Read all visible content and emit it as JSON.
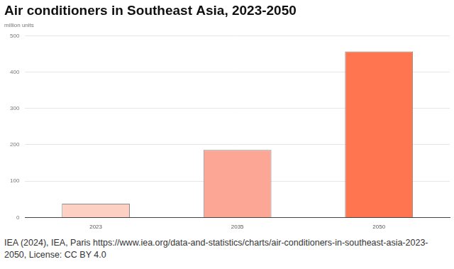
{
  "chart_data": {
    "type": "bar",
    "title": "Air conditioners in Southeast Asia, 2023-2050",
    "subtitle": "million units",
    "categories": [
      "2023",
      "2035",
      "2050"
    ],
    "values": [
      38,
      186,
      457
    ],
    "colors": [
      "#fdd0c4",
      "#fca796",
      "#ff7550"
    ],
    "ylim": [
      0,
      500
    ],
    "yticks": [
      0,
      100,
      200,
      300,
      400,
      500
    ],
    "grid": true,
    "source": "IEA (2024), IEA, Paris https://www.iea.org/data-and-statistics/charts/air-conditioners-in-southeast-asia-2023-2050, License: CC BY 4.0"
  }
}
